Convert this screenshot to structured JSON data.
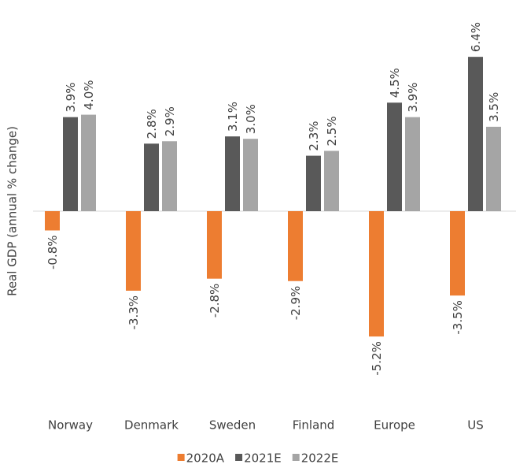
{
  "chart_data": {
    "type": "bar",
    "y_label": "Real GDP (annual % change)",
    "categories": [
      "Norway",
      "Denmark",
      "Sweden",
      "Finland",
      "Europe",
      "US"
    ],
    "series": [
      {
        "name": "2020A",
        "color": "#ed7d31",
        "values": [
          -0.8,
          -3.3,
          -2.8,
          -2.9,
          -5.2,
          -3.5
        ],
        "value_labels": [
          "-0.8%",
          "-3.3%",
          "-2.8%",
          "-2.9%",
          "-5.2%",
          "-3.5%"
        ]
      },
      {
        "name": "2021E",
        "color": "#595959",
        "values": [
          3.9,
          2.8,
          3.1,
          2.3,
          4.5,
          6.4
        ],
        "value_labels": [
          "3.9%",
          "2.8%",
          "3.1%",
          "2.3%",
          "4.5%",
          "6.4%"
        ]
      },
      {
        "name": "2022E",
        "color": "#a5a5a5",
        "values": [
          4.0,
          2.9,
          3.0,
          2.5,
          3.9,
          3.5
        ],
        "value_labels": [
          "4.0%",
          "2.9%",
          "3.0%",
          "2.5%",
          "3.9%",
          "3.5%"
        ]
      }
    ],
    "legend": "bottom"
  }
}
